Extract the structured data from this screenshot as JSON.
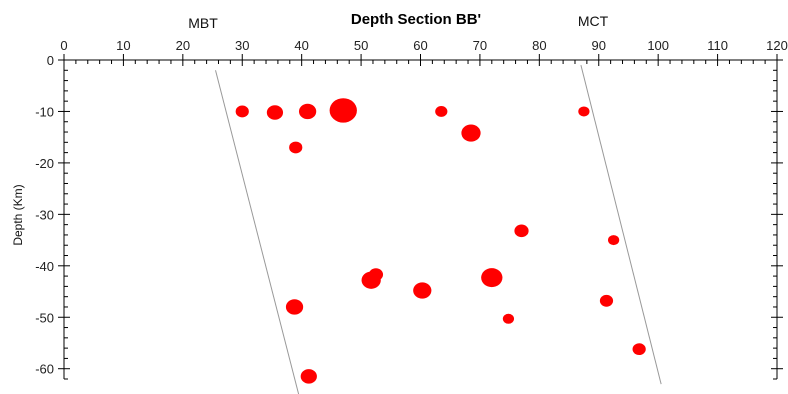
{
  "chart_data": {
    "type": "scatter",
    "title": "Depth Section BB'",
    "xlabel": "",
    "ylabel": "Depth (Km)",
    "xlim": [
      0,
      120
    ],
    "ylim": [
      -62,
      0
    ],
    "x_ticks": [
      0,
      10,
      20,
      30,
      40,
      50,
      60,
      70,
      80,
      90,
      100,
      110,
      120
    ],
    "y_ticks": [
      0,
      -10,
      -20,
      -30,
      -40,
      -50,
      -60
    ],
    "x_tick_labels": [
      "0",
      "10",
      "20",
      "30",
      "40",
      "50",
      "60",
      "70",
      "80",
      "90",
      "100",
      "110",
      "120"
    ],
    "y_tick_labels": [
      "0",
      "-10",
      "-20",
      "-30",
      "-40",
      "-50",
      "-60"
    ],
    "x_axis_position": "top",
    "grid": false,
    "marker_color": "#ff0000",
    "line_color": "#999999",
    "points": [
      {
        "x": 30,
        "y": -10,
        "size": 1
      },
      {
        "x": 35.5,
        "y": -10.2,
        "size": 1.3
      },
      {
        "x": 41,
        "y": -10,
        "size": 1.4
      },
      {
        "x": 47,
        "y": -9.8,
        "size": 2.4
      },
      {
        "x": 63.5,
        "y": -10,
        "size": 0.9
      },
      {
        "x": 87.5,
        "y": -10,
        "size": 0.8
      },
      {
        "x": 68.5,
        "y": -14.2,
        "size": 1.6
      },
      {
        "x": 39,
        "y": -17,
        "size": 1
      },
      {
        "x": 77,
        "y": -33.2,
        "size": 1.1
      },
      {
        "x": 92.5,
        "y": -35,
        "size": 0.8
      },
      {
        "x": 52.5,
        "y": -41.7,
        "size": 1.1
      },
      {
        "x": 51.7,
        "y": -42.8,
        "size": 1.6
      },
      {
        "x": 72,
        "y": -42.3,
        "size": 1.8
      },
      {
        "x": 60.3,
        "y": -44.8,
        "size": 1.5
      },
      {
        "x": 91.3,
        "y": -46.8,
        "size": 1
      },
      {
        "x": 38.8,
        "y": -48,
        "size": 1.4
      },
      {
        "x": 74.8,
        "y": -50.3,
        "size": 0.8
      },
      {
        "x": 96.8,
        "y": -56.2,
        "size": 1
      },
      {
        "x": 41.2,
        "y": -61.5,
        "size": 1.3
      }
    ],
    "fault_lines": [
      {
        "name": "MBT",
        "x1": 25.5,
        "y1": -2,
        "x2": 39.5,
        "y2": -65
      },
      {
        "name": "MCT",
        "x1": 87,
        "y1": -1,
        "x2": 100.5,
        "y2": -63
      }
    ]
  }
}
